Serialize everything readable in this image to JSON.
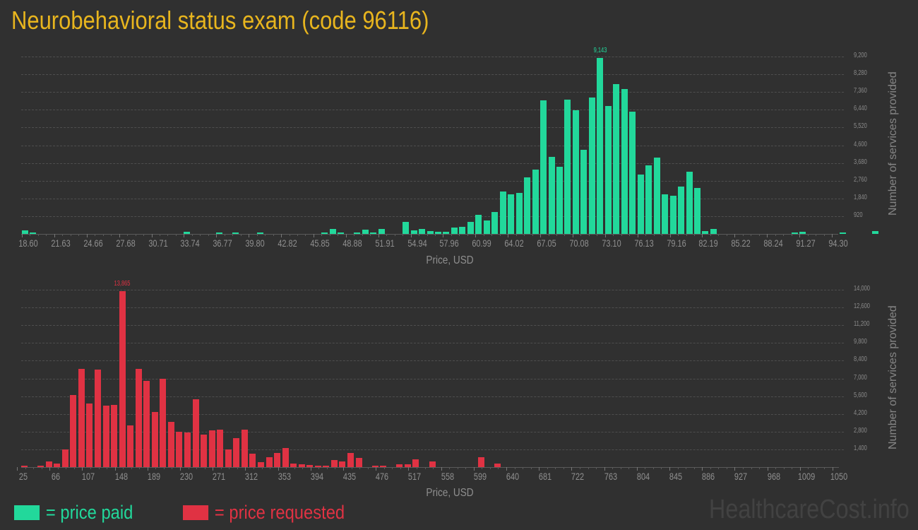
{
  "title": "Neurobehavioral status exam (code 96116)",
  "colors": {
    "title": "#e8b51e",
    "paid": "#22d89b",
    "requested": "#e03243",
    "background": "#303030"
  },
  "legend": {
    "paid_label": "= price paid",
    "requested_label": "= price requested"
  },
  "watermark": "HealthcareCost.info",
  "chart_data": [
    {
      "type": "bar",
      "title": "price paid",
      "xlabel": "Price, USD",
      "ylabel": "Number of services provided",
      "x_tick_labels": [
        "18.60",
        "21.63",
        "24.66",
        "27.68",
        "30.71",
        "33.74",
        "36.77",
        "39.80",
        "42.82",
        "45.85",
        "48.88",
        "51.91",
        "54.94",
        "57.96",
        "60.99",
        "64.02",
        "67.05",
        "70.08",
        "73.10",
        "76.13",
        "79.16",
        "82.19",
        "85.22",
        "88.24",
        "91.27",
        "94.30"
      ],
      "y_tick_labels": [
        "920",
        "1,840",
        "2,760",
        "3,680",
        "4,600",
        "5,520",
        "6,440",
        "7,360",
        "8,280",
        "9,200"
      ],
      "ylim": [
        0,
        9200
      ],
      "grid": true,
      "peak_label": "9,143",
      "bar_color": "#22d89b",
      "values": [
        180,
        90,
        0,
        0,
        0,
        0,
        0,
        0,
        0,
        0,
        0,
        0,
        0,
        0,
        0,
        0,
        0,
        0,
        0,
        0,
        120,
        0,
        0,
        0,
        60,
        0,
        60,
        0,
        0,
        60,
        0,
        0,
        0,
        0,
        0,
        0,
        0,
        30,
        250,
        80,
        0,
        30,
        220,
        40,
        240,
        0,
        0,
        620,
        190,
        270,
        160,
        120,
        120,
        320,
        370,
        620,
        980,
        700,
        1130,
        2200,
        2070,
        2130,
        2950,
        3330,
        6930,
        4000,
        3470,
        6960,
        6420,
        4380,
        7080,
        9143,
        6640,
        7770,
        7510,
        6340,
        3080,
        3560,
        3960,
        2050,
        1990,
        2440,
        3220,
        2390,
        130,
        250,
        0,
        0,
        0,
        0,
        0,
        0,
        0,
        0,
        0,
        30,
        100,
        0,
        0,
        0,
        0,
        40,
        0,
        0,
        0,
        150
      ]
    },
    {
      "type": "bar",
      "title": "price requested",
      "xlabel": "Price, USD",
      "ylabel": "Number of services provided",
      "x_tick_labels": [
        "25",
        "66",
        "107",
        "148",
        "189",
        "230",
        "271",
        "312",
        "353",
        "394",
        "435",
        "476",
        "517",
        "558",
        "599",
        "640",
        "681",
        "722",
        "763",
        "804",
        "845",
        "886",
        "927",
        "968",
        "1009",
        "1050"
      ],
      "y_tick_labels": [
        "1,400",
        "2,800",
        "4,200",
        "5,600",
        "7,000",
        "8,400",
        "9,800",
        "11,200",
        "12,600",
        "14,000"
      ],
      "ylim": [
        0,
        14000
      ],
      "grid": true,
      "peak_label": "13,865",
      "bar_color": "#e03243",
      "values": [
        130,
        0,
        110,
        430,
        260,
        1420,
        5690,
        7780,
        5000,
        7670,
        4870,
        4920,
        13865,
        3290,
        7730,
        6820,
        4330,
        6990,
        3550,
        2790,
        2740,
        5360,
        2550,
        2900,
        2950,
        1400,
        2300,
        2950,
        1050,
        390,
        800,
        1090,
        1530,
        280,
        220,
        150,
        80,
        50,
        570,
        440,
        1090,
        740,
        0,
        130,
        100,
        0,
        230,
        230,
        620,
        0,
        440,
        0,
        0,
        0,
        0,
        0,
        800,
        0,
        300,
        0,
        0,
        0,
        0,
        0,
        0,
        0,
        0,
        0,
        0,
        0,
        0,
        0,
        0,
        0,
        0,
        0,
        0,
        0,
        0,
        0,
        0,
        0,
        0,
        0,
        0,
        0,
        0,
        0,
        0,
        0,
        0,
        0,
        0,
        0,
        0,
        0,
        0,
        0,
        0,
        0,
        0,
        0,
        0,
        0,
        0,
        0,
        0,
        0,
        0,
        0,
        0,
        0,
        0,
        0,
        0,
        0,
        0,
        0,
        0,
        0,
        0,
        0,
        0,
        0,
        0,
        0,
        0,
        0,
        0,
        0,
        0,
        0,
        0,
        0,
        0,
        0,
        0,
        0,
        0,
        0,
        0,
        0,
        0,
        0,
        0
      ]
    }
  ]
}
